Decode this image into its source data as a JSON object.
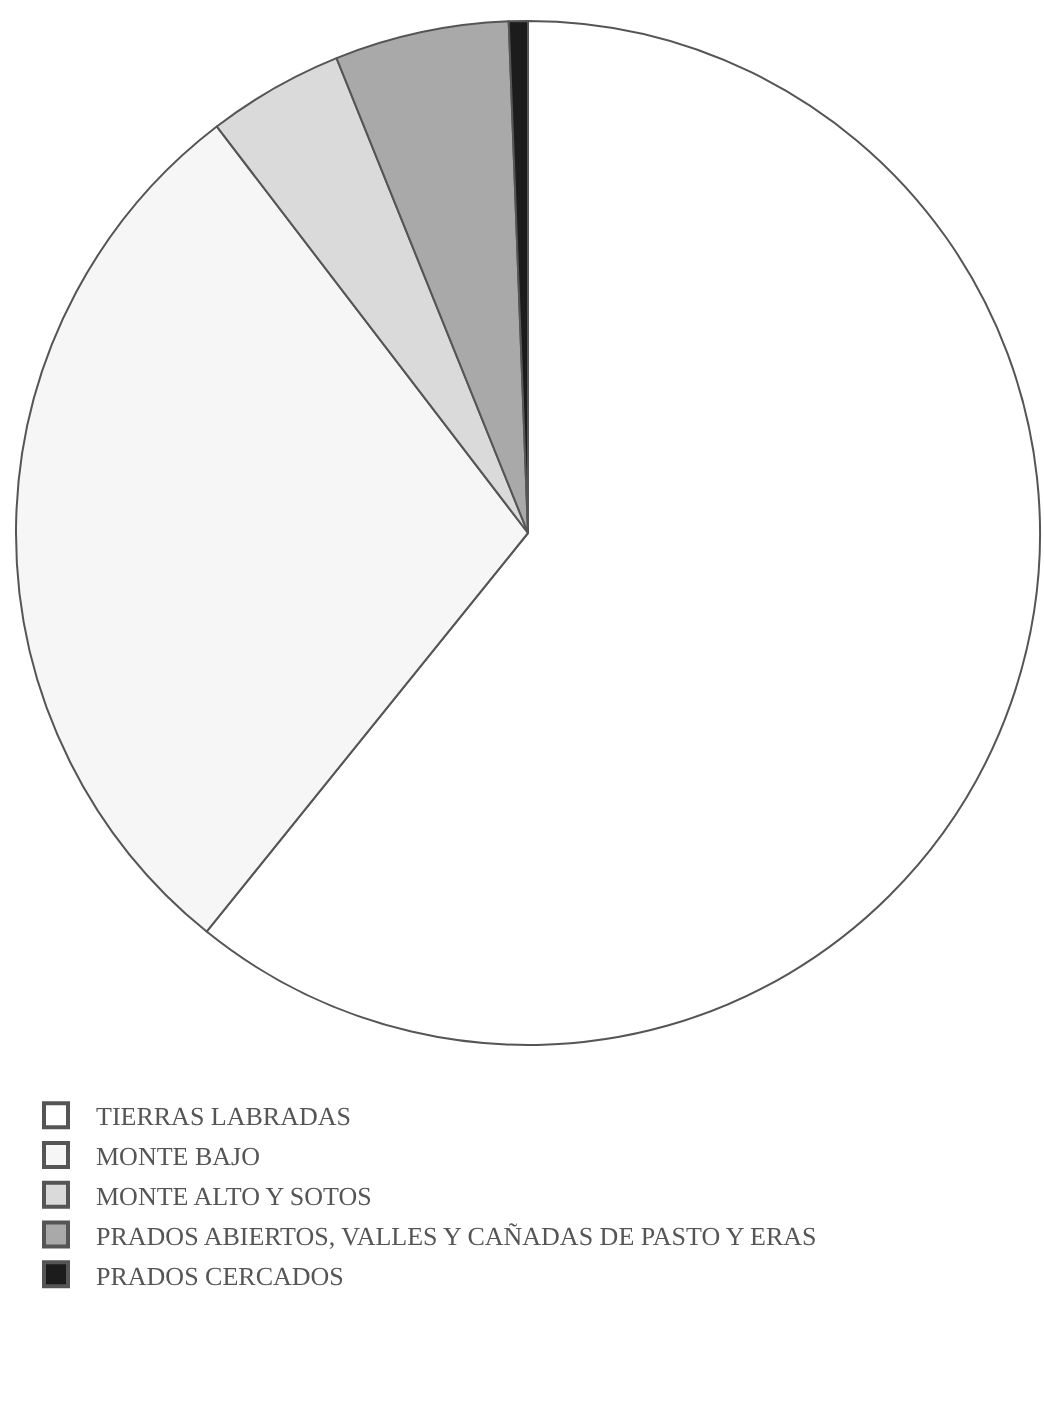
{
  "chart_data": {
    "type": "pie",
    "categories": [
      "TIERRAS LABRADAS",
      "MONTE BAJO",
      "MONTE ALTO Y SOTOS",
      "PRADOS ABIERTOS, VALLES Y CAÑADAS DE PASTO Y ERAS",
      "PRADOS CERCADOS"
    ],
    "values": [
      60.8,
      28.8,
      4.3,
      5.5,
      0.6
    ],
    "colors": [
      "#ffffff",
      "#f6f6f6",
      "#dadada",
      "#a9a9a9",
      "#1c1c1c"
    ],
    "legend": "bottom left"
  }
}
